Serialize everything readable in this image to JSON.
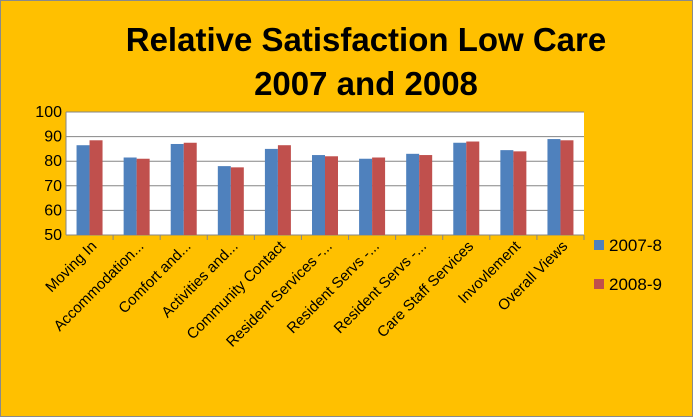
{
  "chart_data": {
    "type": "bar",
    "title_line1": "Relative Satisfaction Low Care",
    "title_line2": "2007 and 2008",
    "categories": [
      "Moving In",
      "Accommodation...",
      "Comfort and...",
      "Activities and...",
      "Community Contact",
      "Resident Services -...",
      "Resident Servs -...",
      "Resident Servs -...",
      "Care Staff Services",
      "Invovlement",
      "Overall Views"
    ],
    "series": [
      {
        "name": "2007-8",
        "color": "#4f81bd",
        "values": [
          86.5,
          81.5,
          87,
          78,
          85,
          82.5,
          81,
          83,
          87.5,
          84.5,
          89
        ]
      },
      {
        "name": "2008-9",
        "color": "#c0504d",
        "values": [
          88.5,
          81,
          87.5,
          77.5,
          86.5,
          82,
          81.5,
          82.5,
          88,
          84,
          88.5
        ]
      }
    ],
    "ylim": [
      50,
      100
    ],
    "yticks": [
      50,
      60,
      70,
      80,
      90,
      100
    ],
    "grid": true,
    "legend_position": "right"
  }
}
